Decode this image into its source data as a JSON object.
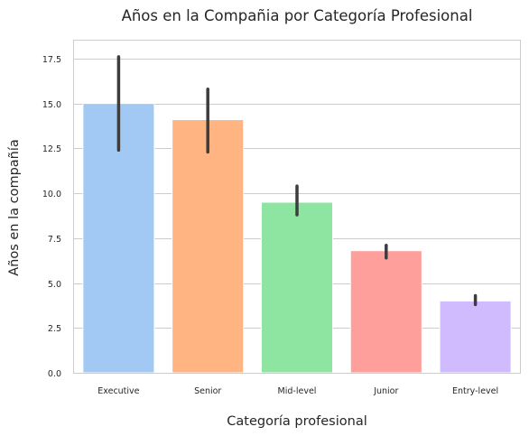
{
  "chart_data": {
    "type": "bar",
    "title": "Años en la Compañia por Categoría Profesional",
    "xlabel": "Categoría profesional",
    "ylabel": "Años en la compañía",
    "categories": [
      "Executive",
      "Senior",
      "Mid-level",
      "Junior",
      "Entry-level"
    ],
    "values": [
      15.0,
      14.1,
      9.5,
      6.8,
      4.0
    ],
    "error_low": [
      12.4,
      12.3,
      8.8,
      6.4,
      3.8
    ],
    "error_high": [
      17.6,
      15.8,
      10.4,
      7.1,
      4.3
    ],
    "colors": [
      "#a1c9f4",
      "#ffb482",
      "#8de5a1",
      "#ff9f9b",
      "#d0bbff"
    ],
    "ylim": [
      0,
      18.5
    ],
    "yticks": [
      0.0,
      2.5,
      5.0,
      7.5,
      10.0,
      12.5,
      15.0,
      17.5
    ],
    "ytick_labels": [
      "0.0",
      "2.5",
      "5.0",
      "7.5",
      "10.0",
      "12.5",
      "15.0",
      "17.5"
    ],
    "grid": true,
    "grid_axis": "y",
    "style": {
      "background": "#ffffff",
      "grid_color": "#cccccc",
      "error_color": "#3d3d3d",
      "text_color": "#262626"
    }
  }
}
